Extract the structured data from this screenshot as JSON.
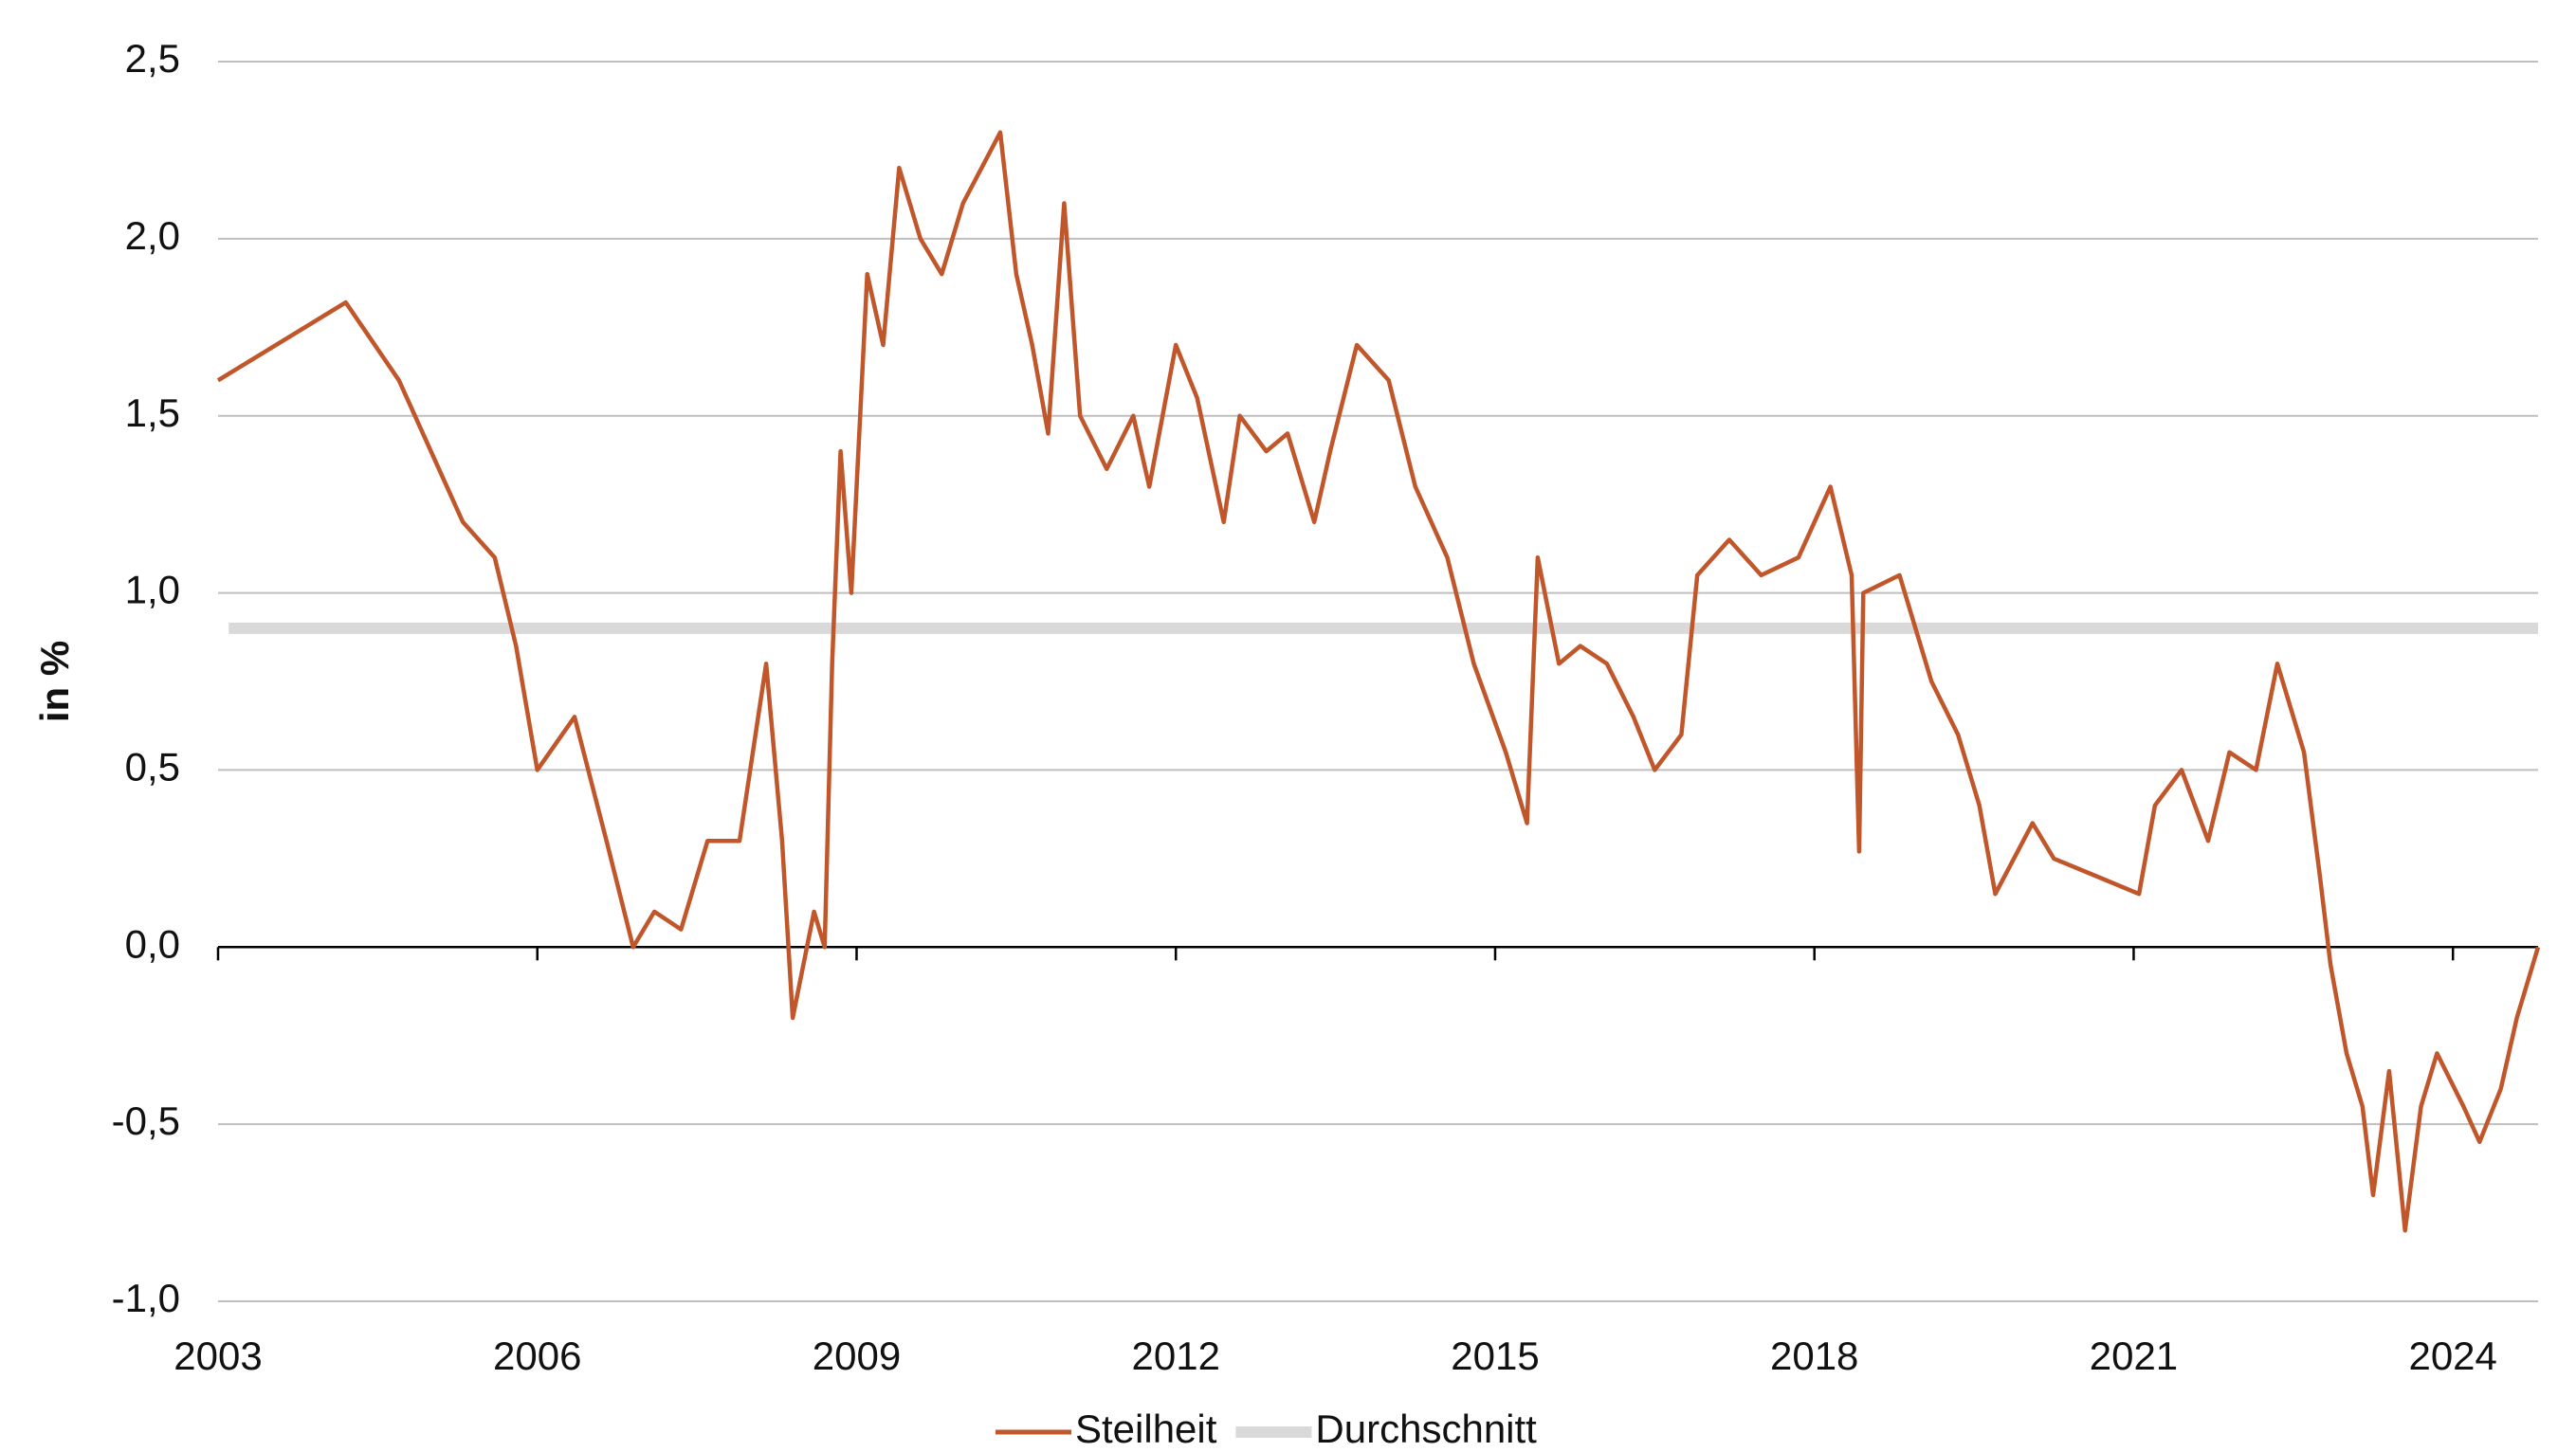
{
  "chart_data": {
    "type": "line",
    "y_label": "in %",
    "xlim": [
      2003,
      2024.8
    ],
    "xticks": [
      2003,
      2006,
      2009,
      2012,
      2015,
      2018,
      2021,
      2024
    ],
    "ylim": [
      -1.0,
      2.5
    ],
    "yticks": [
      {
        "value": -1.0,
        "label": "-1,0"
      },
      {
        "value": -0.5,
        "label": "-0,5"
      },
      {
        "value": 0,
        "label": "0,0"
      },
      {
        "value": 0.5,
        "label": "0,5"
      },
      {
        "value": 1.0,
        "label": "1,0"
      },
      {
        "value": 1.5,
        "label": "1,5"
      },
      {
        "value": 2.0,
        "label": "2,0"
      },
      {
        "value": 2.5,
        "label": "2,5"
      }
    ],
    "grid": true,
    "legend": "bottom",
    "series": [
      {
        "name": "Steilheit",
        "color": "#c0562a",
        "x": [
          2003,
          2004.2,
          2004.7,
          2005.0,
          2005.3,
          2005.6,
          2005.8,
          2006.0,
          2006.35,
          2006.65,
          2006.9,
          2007.1,
          2007.35,
          2007.6,
          2007.9,
          2008.15,
          2008.3,
          2008.4,
          2008.6,
          2008.7,
          2008.77,
          2008.85,
          2008.95,
          2009.1,
          2009.25,
          2009.4,
          2009.6,
          2009.8,
          2010.0,
          2010.35,
          2010.5,
          2010.65,
          2010.8,
          2010.95,
          2011.1,
          2011.35,
          2011.6,
          2011.75,
          2012.0,
          2012.2,
          2012.45,
          2012.6,
          2012.85,
          2013.05,
          2013.3,
          2013.45,
          2013.7,
          2014.0,
          2014.25,
          2014.55,
          2014.8,
          2015.1,
          2015.3,
          2015.4,
          2015.6,
          2015.8,
          2016.05,
          2016.3,
          2016.5,
          2016.75,
          2016.9,
          2017.2,
          2017.5,
          2017.85,
          2018.15,
          2018.35,
          2018.42,
          2018.46,
          2018.8,
          2019.1,
          2019.35,
          2019.55,
          2019.7,
          2020.05,
          2020.25,
          2020.65,
          2021.05,
          2021.2,
          2021.45,
          2021.7,
          2021.9,
          2022.15,
          2022.35,
          2022.6,
          2022.75,
          2022.85,
          2023.0,
          2023.15,
          2023.25,
          2023.4,
          2023.55,
          2023.7,
          2023.85,
          2024.1,
          2024.25,
          2024.45,
          2024.6,
          2024.8
        ],
        "values": [
          1.6,
          1.82,
          1.6,
          1.4,
          1.2,
          1.1,
          0.85,
          0.5,
          0.65,
          0.3,
          0.0,
          0.1,
          0.05,
          0.3,
          0.3,
          0.8,
          0.3,
          -0.2,
          0.1,
          0.0,
          0.8,
          1.4,
          1.0,
          1.9,
          1.7,
          2.2,
          2.0,
          1.9,
          2.1,
          2.3,
          1.9,
          1.7,
          1.45,
          2.1,
          1.5,
          1.35,
          1.5,
          1.3,
          1.7,
          1.55,
          1.2,
          1.5,
          1.4,
          1.45,
          1.2,
          1.4,
          1.7,
          1.6,
          1.3,
          1.1,
          0.8,
          0.55,
          0.35,
          1.1,
          0.8,
          0.85,
          0.8,
          0.65,
          0.5,
          0.6,
          1.05,
          1.15,
          1.05,
          1.1,
          1.3,
          1.05,
          0.27,
          1.0,
          1.05,
          0.75,
          0.6,
          0.4,
          0.15,
          0.35,
          0.25,
          0.2,
          0.15,
          0.4,
          0.5,
          0.3,
          0.55,
          0.5,
          0.8,
          0.55,
          0.2,
          -0.05,
          -0.3,
          -0.45,
          -0.7,
          -0.35,
          -0.8,
          -0.45,
          -0.3,
          -0.45,
          -0.55,
          -0.4,
          -0.2,
          0.0
        ]
      },
      {
        "name": "Durchschnitt",
        "color": "#d9d9d9",
        "x": [
          2003.1,
          2024.8
        ],
        "values": [
          0.9,
          0.9
        ]
      }
    ]
  }
}
